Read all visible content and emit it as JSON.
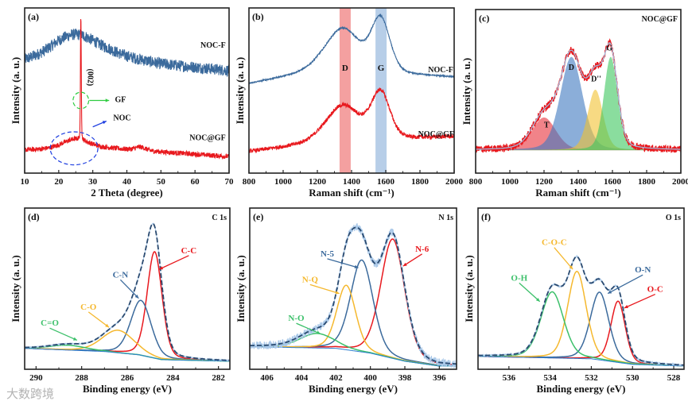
{
  "watermark": "大数跨境",
  "chart_data": [
    {
      "id": "a",
      "type": "line",
      "label": "(a)",
      "corner_label": "",
      "xlabel": "2 Theta (degree)",
      "ylabel": "Intensity (a. u.)",
      "xlim": [
        10,
        70
      ],
      "ylim": [
        0,
        100
      ],
      "xticks": [
        10,
        20,
        30,
        40,
        50,
        60,
        70
      ],
      "series": [
        {
          "name": "NOC-F",
          "color": "#3b6a9c",
          "noise": 3.5,
          "baseline": [
            [
              10,
              68
            ],
            [
              20,
              72
            ],
            [
              35,
              72
            ],
            [
              50,
              66
            ],
            [
              70,
              62
            ]
          ],
          "peaks": [
            {
              "center": 25,
              "amp": 12,
              "sigma": 6
            }
          ],
          "label_at": [
            69,
            76
          ]
        },
        {
          "name": "NOC@GF",
          "color": "#e8191e",
          "noise": 1.5,
          "baseline": [
            [
              10,
              14
            ],
            [
              35,
              15
            ],
            [
              70,
              10
            ]
          ],
          "peaks": [
            {
              "center": 25,
              "amp": 6,
              "sigma": 4
            },
            {
              "center": 26.5,
              "amp": 76,
              "sigma": 0.12
            },
            {
              "center": 44,
              "amp": 2,
              "sigma": 1.5
            }
          ],
          "label_at": [
            69,
            20
          ]
        }
      ],
      "annotations": [
        {
          "text": "(002)",
          "at": [
            28.6,
            58
          ],
          "color": "#111",
          "rotate": true
        },
        {
          "text": "GF",
          "at": [
            36.5,
            43
          ],
          "color": "#111",
          "arrow_from": [
            29,
            44
          ],
          "arrow_to": [
            34.8,
            44
          ],
          "arrow_color": "#2ecc40"
        },
        {
          "text": "NOC",
          "at": [
            36,
            32
          ],
          "color": "#111",
          "arrow_from": [
            30,
            28
          ],
          "arrow_to": [
            34,
            31.5
          ],
          "arrow_color": "#1f3fe0"
        }
      ],
      "ellipses": [
        {
          "name": "GF",
          "center": [
            26.5,
            44
          ],
          "radii": [
            2.3,
            5
          ],
          "color": "#2ecc40"
        },
        {
          "name": "NOC",
          "center": [
            24.5,
            15
          ],
          "radii": [
            7,
            10
          ],
          "color": "#1f3fe0"
        }
      ]
    },
    {
      "id": "b",
      "type": "line",
      "label": "(b)",
      "corner_label": "",
      "xlabel": "Raman shift (cm⁻¹)",
      "ylabel": "Intensity (a. u.)",
      "xlim": [
        800,
        2000
      ],
      "ylim": [
        0,
        100
      ],
      "xticks": [
        800,
        1000,
        1200,
        1400,
        1600,
        1800,
        2000
      ],
      "bands": [
        {
          "name": "D",
          "range": [
            1330,
            1395
          ],
          "color": "#f08080",
          "label_at": [
            1362,
            62
          ]
        },
        {
          "name": "G",
          "range": [
            1540,
            1605
          ],
          "color": "#9fbde0",
          "label_at": [
            1572,
            62
          ]
        }
      ],
      "series": [
        {
          "name": "NOC-F",
          "color": "#3b6a9c",
          "noise": 0.4,
          "baseline": [
            [
              800,
              54
            ],
            [
              1200,
              62
            ],
            [
              2000,
              58
            ]
          ],
          "peaks": [
            {
              "center": 1350,
              "amp": 26,
              "sigma": 100
            },
            {
              "center": 1570,
              "amp": 32,
              "sigma": 55
            }
          ],
          "label_at": [
            1995,
            61
          ]
        },
        {
          "name": "NOC@GF",
          "color": "#e8191e",
          "noise": 1.2,
          "baseline": [
            [
              800,
              13
            ],
            [
              1200,
              18
            ],
            [
              2000,
              22
            ]
          ],
          "peaks": [
            {
              "center": 1350,
              "amp": 22,
              "sigma": 100
            },
            {
              "center": 1570,
              "amp": 28,
              "sigma": 55
            }
          ],
          "label_at": [
            2000,
            22
          ]
        }
      ]
    },
    {
      "id": "c",
      "type": "area",
      "label": "(c)",
      "corner_label": "NOC@GF",
      "xlabel": "Raman shift (cm⁻¹)",
      "ylabel": "Intensity (a. u.)",
      "xlim": [
        800,
        2000
      ],
      "ylim": [
        0,
        100
      ],
      "xticks": [
        800,
        1000,
        1200,
        1400,
        1600,
        1800,
        2000
      ],
      "background": [
        [
          800,
          14
        ],
        [
          2000,
          14
        ]
      ],
      "components": [
        {
          "name": "T",
          "center": 1200,
          "amp": 20,
          "sigma": 70,
          "color": "#e8303a",
          "label_at": [
            1215,
            28
          ]
        },
        {
          "name": "D",
          "center": 1360,
          "amp": 57,
          "sigma": 65,
          "color": "#3d78c0",
          "label_at": [
            1360,
            63
          ]
        },
        {
          "name": "D''",
          "center": 1500,
          "amp": 37,
          "sigma": 45,
          "color": "#f2c230",
          "label_at": [
            1505,
            56
          ]
        },
        {
          "name": "G",
          "center": 1590,
          "amp": 57,
          "sigma": 40,
          "color": "#3cc65e",
          "label_at": [
            1582,
            75
          ]
        }
      ],
      "fill_components": true,
      "raw": {
        "color": "#e8191e",
        "noise": 2.2
      },
      "envelope": {
        "color": "#9fbde0",
        "dashed": false
      }
    },
    {
      "id": "d",
      "type": "line",
      "label": "(d)",
      "corner_label": "C 1s",
      "xlabel": "Binding energy (eV)",
      "ylabel": "Intensity (a. u.)",
      "xlim": [
        290.5,
        281.5
      ],
      "ylim": [
        0,
        100
      ],
      "xticks": [
        290,
        288,
        286,
        284,
        282
      ],
      "background": [
        [
          290.5,
          13
        ],
        [
          287,
          11
        ],
        [
          285.5,
          9
        ],
        [
          284.5,
          6
        ],
        [
          281.5,
          5
        ]
      ],
      "components": [
        {
          "name": "C-C",
          "center": 284.8,
          "amp": 66,
          "sigma": 0.33,
          "color": "#e8191e",
          "label_at": [
            283.3,
            72
          ],
          "arrow_to": [
            284.6,
            62
          ]
        },
        {
          "name": "C-N",
          "center": 285.4,
          "amp": 34,
          "sigma": 0.45,
          "color": "#3b6a9c",
          "label_at": [
            286.3,
            57
          ],
          "arrow_to": [
            285.5,
            44
          ]
        },
        {
          "name": "C-O",
          "center": 286.4,
          "amp": 14,
          "sigma": 0.7,
          "color": "#f5b82e",
          "label_at": [
            287.7,
            37
          ],
          "arrow_to": [
            286.8,
            26
          ]
        },
        {
          "name": "C=O",
          "center": 288.6,
          "amp": 3,
          "sigma": 0.8,
          "color": "#3cc06a",
          "label_at": [
            289.4,
            27
          ],
          "arrow_to": [
            288.2,
            18
          ]
        }
      ],
      "raw": {
        "color": "#a9c8e8",
        "noise": 0.3
      },
      "envelope": {
        "color": "#2a4a70",
        "dashed": true
      }
    },
    {
      "id": "e",
      "type": "line",
      "label": "(e)",
      "corner_label": "N 1s",
      "xlabel": "Binding energy (eV)",
      "ylabel": "Intensity (a. u.)",
      "xlim": [
        407,
        395
      ],
      "ylim": [
        0,
        100
      ],
      "xticks": [
        406,
        404,
        402,
        400,
        398,
        396
      ],
      "background": [
        [
          407,
          14
        ],
        [
          402,
          13
        ],
        [
          400,
          10
        ],
        [
          398,
          5
        ],
        [
          396,
          2
        ],
        [
          395,
          2
        ]
      ],
      "components": [
        {
          "name": "N-6",
          "center": 398.7,
          "amp": 74,
          "sigma": 0.7,
          "color": "#e8191e",
          "label_at": [
            397.0,
            73
          ],
          "arrow_to": [
            398.1,
            64
          ]
        },
        {
          "name": "N-5",
          "center": 400.5,
          "amp": 57,
          "sigma": 0.65,
          "color": "#3b6a9c",
          "label_at": [
            402.5,
            70
          ],
          "arrow_to": [
            400.7,
            63
          ]
        },
        {
          "name": "N-Q",
          "center": 401.4,
          "amp": 40,
          "sigma": 0.55,
          "color": "#f5b82e",
          "label_at": [
            403.5,
            54
          ],
          "arrow_to": [
            401.8,
            47
          ]
        },
        {
          "name": "N-O",
          "center": 403.1,
          "amp": 9,
          "sigma": 1.0,
          "color": "#3cc06a",
          "label_at": [
            404.3,
            30
          ],
          "arrow_to": [
            402.9,
            22
          ]
        }
      ],
      "raw": {
        "color": "#a9c8e8",
        "noise": 2.5
      },
      "envelope": {
        "color": "#2a4a70",
        "dashed": true
      }
    },
    {
      "id": "f",
      "type": "line",
      "label": "(f)",
      "corner_label": "O 1s",
      "xlabel": "Binding energy (eV)",
      "ylabel": "Intensity (a. u.)",
      "xlim": [
        537.5,
        527.5
      ],
      "ylim": [
        0,
        100
      ],
      "xticks": [
        536,
        534,
        532,
        530,
        528
      ],
      "background": [
        [
          537.5,
          8
        ],
        [
          532,
          6.5
        ],
        [
          530,
          3
        ],
        [
          527.5,
          2
        ]
      ],
      "components": [
        {
          "name": "O-C",
          "center": 530.7,
          "amp": 38,
          "sigma": 0.35,
          "color": "#e8191e",
          "label_at": [
            528.9,
            48
          ],
          "arrow_to": [
            530.4,
            38
          ]
        },
        {
          "name": "O-N",
          "center": 531.6,
          "amp": 42,
          "sigma": 0.45,
          "color": "#3b6a9c",
          "label_at": [
            529.5,
            60
          ],
          "arrow_to": [
            531.2,
            47
          ]
        },
        {
          "name": "C-O-C",
          "center": 532.7,
          "amp": 54,
          "sigma": 0.45,
          "color": "#f5b82e",
          "label_at": [
            533.8,
            77
          ],
          "arrow_to": [
            532.9,
            62
          ]
        },
        {
          "name": "O-H",
          "center": 533.9,
          "amp": 41,
          "sigma": 0.55,
          "color": "#3cc06a",
          "label_at": [
            535.5,
            55
          ],
          "arrow_to": [
            534.5,
            42
          ]
        }
      ],
      "raw": {
        "color": "#a9c8e8",
        "noise": 0.6
      },
      "envelope": {
        "color": "#2a4a70",
        "dashed": true
      }
    }
  ]
}
